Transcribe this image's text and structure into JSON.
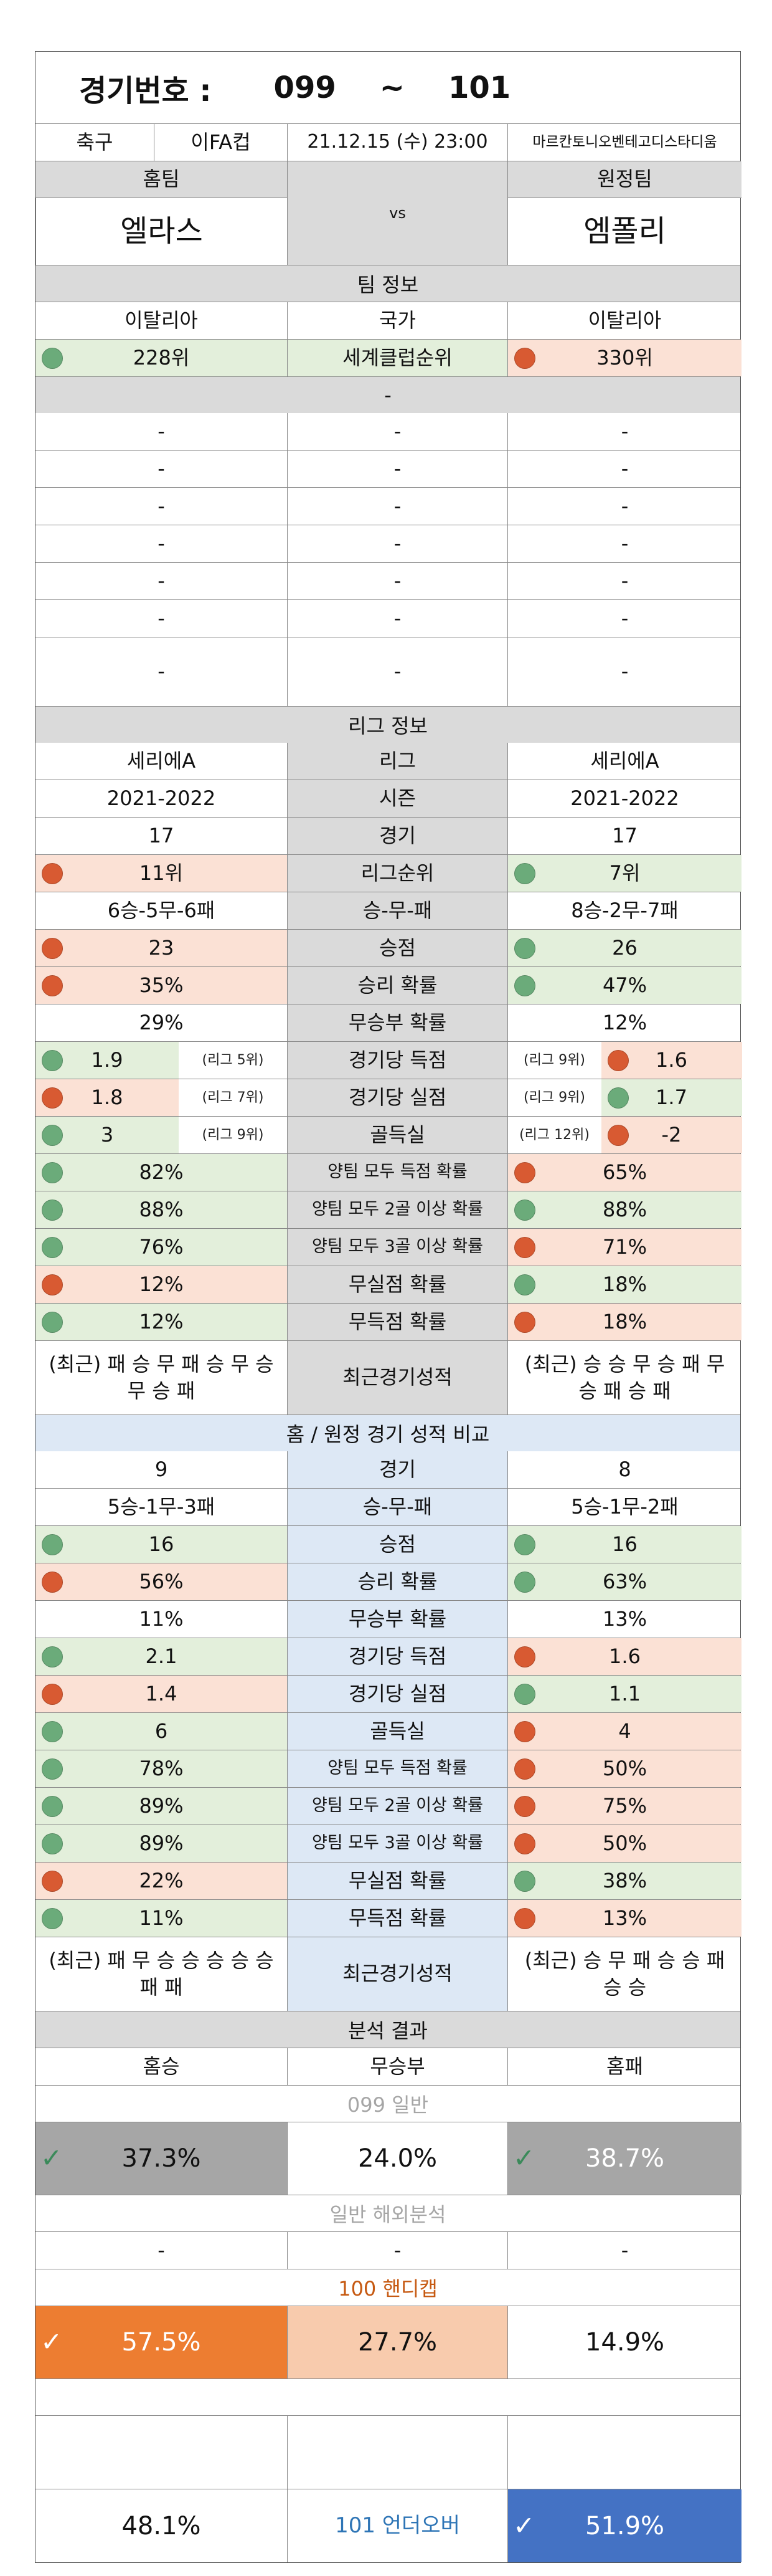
{
  "header": {
    "label": "경기번호 :",
    "from": "099",
    "tilde": "~",
    "to": "101"
  },
  "match": {
    "sport": "축구",
    "league": "이FA컵",
    "datetime": "21.12.15 (수) 23:00",
    "venue": "마르칸토니오벤테고디스타디움"
  },
  "teams": {
    "home_label": "홈팀",
    "away_label": "원정팀",
    "home": "엘라스",
    "vs": "vs",
    "away": "엠폴리"
  },
  "team_info": {
    "title": "팀 정보",
    "home_country": "이탈리아",
    "country_label": "국가",
    "away_country": "이탈리아",
    "home_rank": "228위",
    "rank_label": "세계클럽순위",
    "away_rank": "330위",
    "dash": "-"
  },
  "league_info": {
    "title": "리그 정보",
    "rows": [
      {
        "h": "세리에A",
        "l": "리그",
        "a": "세리에A"
      },
      {
        "h": "2021-2022",
        "l": "시즌",
        "a": "2021-2022"
      },
      {
        "h": "17",
        "l": "경기",
        "a": "17"
      },
      {
        "h": "11위",
        "l": "리그순위",
        "a": "7위",
        "hc": "red",
        "ac": "green"
      },
      {
        "h": "6승-5무-6패",
        "l": "승-무-패",
        "a": "8승-2무-7패"
      },
      {
        "h": "23",
        "l": "승점",
        "a": "26",
        "hc": "red",
        "ac": "green"
      },
      {
        "h": "35%",
        "l": "승리 확률",
        "a": "47%",
        "hc": "red",
        "ac": "green"
      },
      {
        "h": "29%",
        "l": "무승부 확률",
        "a": "12%"
      },
      {
        "h": "1.9",
        "hs": "(리그 5위)",
        "l": "경기당 득점",
        "as": "(리그 9위)",
        "a": "1.6",
        "hc": "green",
        "ac": "red"
      },
      {
        "h": "1.8",
        "hs": "(리그 7위)",
        "l": "경기당 실점",
        "as": "(리그 9위)",
        "a": "1.7",
        "hc": "red",
        "ac": "green"
      },
      {
        "h": "3",
        "hs": "(리그 9위)",
        "l": "골득실",
        "as": "(리그 12위)",
        "a": "-2",
        "hc": "green",
        "ac": "red"
      },
      {
        "h": "82%",
        "l": "양팀 모두 득점 확률",
        "a": "65%",
        "hc": "green",
        "ac": "red"
      },
      {
        "h": "88%",
        "l": "양팀 모두 2골 이상 확률",
        "a": "88%",
        "hc": "green",
        "ac": "green"
      },
      {
        "h": "76%",
        "l": "양팀 모두 3골 이상 확률",
        "a": "71%",
        "hc": "green",
        "ac": "red"
      },
      {
        "h": "12%",
        "l": "무실점 확률",
        "a": "18%",
        "hc": "red",
        "ac": "green"
      },
      {
        "h": "12%",
        "l": "무득점 확률",
        "a": "18%",
        "hc": "green",
        "ac": "red"
      }
    ],
    "recent": {
      "h": "(최근) 패 승 무 패 승 무 승 무 승 패",
      "l": "최근경기성적",
      "a": "(최근) 승 승 무 승 패 무 승 패 승 패"
    }
  },
  "homeaway": {
    "title": "홈 / 원정 경기 성적 비교",
    "rows": [
      {
        "h": "9",
        "l": "경기",
        "a": "8"
      },
      {
        "h": "5승-1무-3패",
        "l": "승-무-패",
        "a": "5승-1무-2패"
      },
      {
        "h": "16",
        "l": "승점",
        "a": "16",
        "hc": "green",
        "ac": "green"
      },
      {
        "h": "56%",
        "l": "승리 확률",
        "a": "63%",
        "hc": "red",
        "ac": "green"
      },
      {
        "h": "11%",
        "l": "무승부 확률",
        "a": "13%"
      },
      {
        "h": "2.1",
        "l": "경기당 득점",
        "a": "1.6",
        "hc": "green",
        "ac": "red"
      },
      {
        "h": "1.4",
        "l": "경기당 실점",
        "a": "1.1",
        "hc": "red",
        "ac": "green"
      },
      {
        "h": "6",
        "l": "골득실",
        "a": "4",
        "hc": "green",
        "ac": "red"
      },
      {
        "h": "78%",
        "l": "양팀 모두 득점 확률",
        "a": "50%",
        "hc": "green",
        "ac": "red"
      },
      {
        "h": "89%",
        "l": "양팀 모두 2골 이상 확률",
        "a": "75%",
        "hc": "green",
        "ac": "red"
      },
      {
        "h": "89%",
        "l": "양팀 모두 3골 이상 확률",
        "a": "50%",
        "hc": "green",
        "ac": "red"
      },
      {
        "h": "22%",
        "l": "무실점 확률",
        "a": "38%",
        "hc": "red",
        "ac": "green"
      },
      {
        "h": "11%",
        "l": "무득점 확률",
        "a": "13%",
        "hc": "green",
        "ac": "red"
      }
    ],
    "recent": {
      "h": "(최근) 패 무 승 승 승 승 승 패 패",
      "l": "최근경기성적",
      "a": "(최근) 승 무 패 승 승 패 승 승"
    }
  },
  "analysis": {
    "title": "분석 결과",
    "home_win": "홈승",
    "draw": "무승부",
    "home_loss": "홈패",
    "general_title": "099 일반",
    "general": [
      "37.3%",
      "24.0%",
      "38.7%"
    ],
    "overseas_title": "일반 해외분석",
    "overseas": [
      "-",
      "-",
      "-"
    ],
    "handicap_title": "100 핸디캡",
    "handicap": [
      "57.5%",
      "27.7%",
      "14.9%"
    ],
    "underover": [
      "48.1%",
      "101 언더오버",
      "51.9%"
    ]
  },
  "colors": {
    "green": "#6bab7a",
    "red": "#d85a32",
    "orange": "#ed7d31",
    "blue": "#4472c4",
    "grey": "#a6a6a6"
  },
  "icons": {
    "check": "check-icon"
  }
}
